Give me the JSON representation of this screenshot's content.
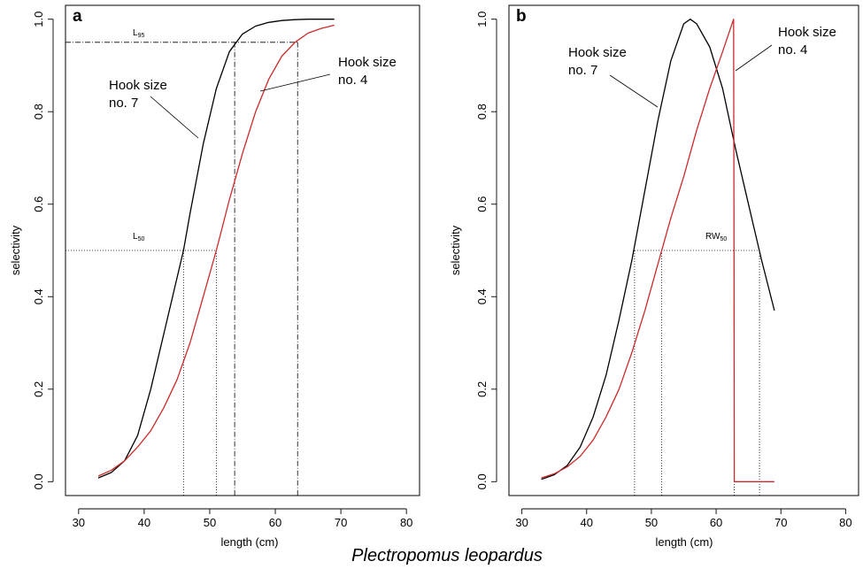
{
  "figure": {
    "caption": "Plectropomus leopardus"
  },
  "colors": {
    "hook_no_7": "#000000",
    "hook_no_4": "#cc2a2a"
  },
  "chart_data": [
    {
      "type": "line",
      "panel": "a",
      "xlabel": "length (cm)",
      "ylabel": "selectivity",
      "xlim": [
        28,
        82
      ],
      "ylim": [
        -0.03,
        1.03
      ],
      "xticks": [
        "30",
        "40",
        "50",
        "60",
        "70",
        "80"
      ],
      "yticks": [
        "0.0",
        "0.2",
        "0.4",
        "0.6",
        "0.8",
        "1.0"
      ],
      "series": [
        {
          "name": "Hook size no. 7",
          "x": [
            33,
            35,
            37,
            39,
            41,
            43,
            45,
            46,
            47,
            49,
            51,
            53,
            55,
            57,
            59,
            61,
            63,
            65,
            67,
            69
          ],
          "y": [
            0.008,
            0.02,
            0.045,
            0.1,
            0.2,
            0.32,
            0.44,
            0.5,
            0.58,
            0.73,
            0.85,
            0.93,
            0.968,
            0.985,
            0.993,
            0.997,
            0.999,
            1.0,
            1.0,
            1.0
          ]
        },
        {
          "name": "Hook size no. 4",
          "x": [
            33,
            35,
            37,
            39,
            41,
            43,
            45,
            47,
            49,
            51,
            53,
            54,
            55,
            57,
            59,
            61,
            63,
            65,
            67,
            69
          ],
          "y": [
            0.012,
            0.025,
            0.045,
            0.075,
            0.11,
            0.16,
            0.22,
            0.3,
            0.4,
            0.5,
            0.61,
            0.66,
            0.71,
            0.8,
            0.87,
            0.92,
            0.95,
            0.97,
            0.98,
            0.987
          ]
        }
      ],
      "reference_lines": {
        "L95": {
          "y": 0.95,
          "x_no7": 53.8,
          "x_no4": 63.4
        },
        "L50": {
          "y": 0.5,
          "x_no7": 46.0,
          "x_no4": 51.0
        }
      },
      "annotations": {
        "l95_base": "L",
        "l95_sub": "95",
        "l50_base": "L",
        "l50_sub": "50",
        "label_no7_line1": "Hook size",
        "label_no7_line2": "no. 7",
        "label_no4_line1": "Hook size",
        "label_no4_line2": "no. 4"
      }
    },
    {
      "type": "line",
      "panel": "b",
      "xlabel": "length (cm)",
      "ylabel": "selectivity",
      "xlim": [
        28,
        82
      ],
      "ylim": [
        -0.03,
        1.03
      ],
      "xticks": [
        "30",
        "40",
        "50",
        "60",
        "70",
        "80"
      ],
      "yticks": [
        "0.0",
        "0.2",
        "0.4",
        "0.6",
        "0.8",
        "1.0"
      ],
      "series": [
        {
          "name": "Hook size no. 7",
          "x": [
            33,
            35,
            37,
            39,
            41,
            43,
            45,
            47,
            49,
            51,
            53,
            55,
            56,
            57,
            59,
            61,
            63,
            65,
            67,
            69
          ],
          "y": [
            0.005,
            0.015,
            0.035,
            0.075,
            0.14,
            0.23,
            0.35,
            0.48,
            0.63,
            0.78,
            0.91,
            0.99,
            1.0,
            0.99,
            0.94,
            0.85,
            0.72,
            0.6,
            0.48,
            0.37
          ]
        },
        {
          "name": "Hook size no. 4",
          "x": [
            33,
            35,
            37,
            39,
            41,
            43,
            45,
            47,
            49,
            51,
            53,
            55,
            57,
            59,
            61,
            62.7,
            62.75,
            62.8,
            66,
            69
          ],
          "y": [
            0.008,
            0.017,
            0.032,
            0.055,
            0.09,
            0.14,
            0.2,
            0.28,
            0.37,
            0.47,
            0.57,
            0.66,
            0.76,
            0.85,
            0.93,
            1.0,
            0.6,
            0.0,
            0.0,
            0.0
          ]
        }
      ],
      "reference_lines": {
        "RW50": {
          "y": 0.5,
          "x_no7_left": 47.4,
          "x_no7_right": 66.7,
          "x_no4_left": 51.6,
          "x_no4_right": 62.8
        }
      },
      "annotations": {
        "rw50_base": "RW",
        "rw50_sub": "50",
        "label_no7_line1": "Hook size",
        "label_no7_line2": "no. 7",
        "label_no4_line1": "Hook size",
        "label_no4_line2": "no. 4"
      }
    }
  ]
}
